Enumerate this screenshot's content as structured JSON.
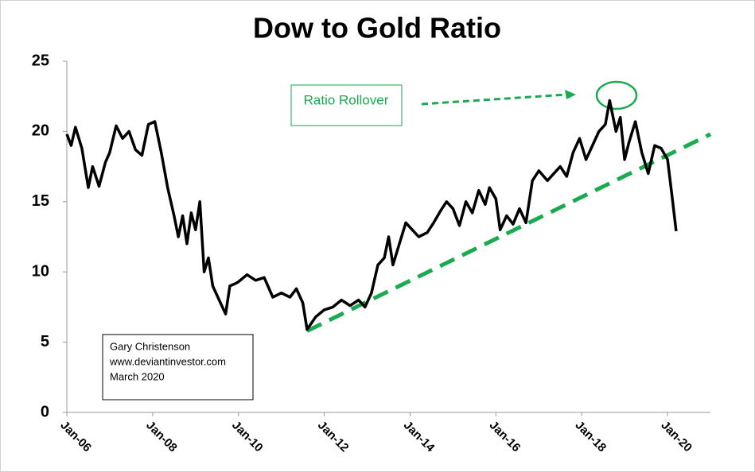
{
  "chart_data": {
    "type": "line",
    "title": "Dow to Gold Ratio",
    "x": [
      2006.0,
      2006.1,
      2006.2,
      2006.35,
      2006.5,
      2006.6,
      2006.75,
      2006.9,
      2007.0,
      2007.15,
      2007.3,
      2007.45,
      2007.6,
      2007.75,
      2007.9,
      2008.05,
      2008.2,
      2008.35,
      2008.5,
      2008.6,
      2008.7,
      2008.8,
      2008.9,
      2009.0,
      2009.1,
      2009.2,
      2009.3,
      2009.4,
      2009.55,
      2009.7,
      2009.8,
      2009.95,
      2010.0,
      2010.2,
      2010.4,
      2010.6,
      2010.8,
      2011.0,
      2011.2,
      2011.35,
      2011.5,
      2011.6,
      2011.8,
      2012.0,
      2012.2,
      2012.4,
      2012.6,
      2012.8,
      2012.95,
      2013.1,
      2013.25,
      2013.4,
      2013.5,
      2013.6,
      2013.75,
      2013.9,
      2014.05,
      2014.2,
      2014.4,
      2014.55,
      2014.7,
      2014.85,
      2015.0,
      2015.15,
      2015.3,
      2015.45,
      2015.6,
      2015.75,
      2015.85,
      2016.0,
      2016.1,
      2016.25,
      2016.4,
      2016.55,
      2016.7,
      2016.85,
      2017.0,
      2017.2,
      2017.35,
      2017.5,
      2017.65,
      2017.8,
      2017.95,
      2018.1,
      2018.25,
      2018.4,
      2018.55,
      2018.65,
      2018.8,
      2018.9,
      2019.0,
      2019.1,
      2019.25,
      2019.4,
      2019.55,
      2019.7,
      2019.85,
      2020.0,
      2020.1,
      2020.2
    ],
    "series": [
      {
        "name": "Dow to Gold Ratio",
        "color": "#000000",
        "values": [
          19.8,
          19.0,
          20.3,
          18.8,
          16.0,
          17.5,
          16.1,
          17.8,
          18.5,
          20.4,
          19.5,
          20.0,
          18.7,
          18.3,
          20.5,
          20.7,
          18.5,
          16.0,
          14.0,
          12.5,
          14.0,
          12.0,
          14.2,
          13.0,
          15.0,
          10.0,
          11.0,
          9.0,
          8.0,
          7.0,
          9.0,
          9.2,
          9.3,
          9.8,
          9.4,
          9.6,
          8.2,
          8.5,
          8.2,
          8.8,
          7.8,
          5.9,
          6.8,
          7.3,
          7.5,
          8.0,
          7.6,
          8.0,
          7.5,
          8.5,
          10.5,
          11.0,
          12.5,
          10.5,
          12.0,
          13.5,
          13.0,
          12.5,
          12.8,
          13.5,
          14.3,
          15.0,
          14.5,
          13.3,
          15.0,
          14.2,
          15.8,
          14.8,
          16.0,
          15.2,
          13.0,
          14.0,
          13.4,
          14.5,
          13.5,
          16.5,
          17.2,
          16.5,
          17.0,
          17.5,
          16.8,
          18.5,
          19.5,
          18.0,
          19.0,
          20.0,
          20.5,
          22.2,
          20.0,
          21.0,
          18.0,
          19.2,
          20.7,
          18.5,
          17.0,
          19.0,
          18.8,
          18.0,
          15.5,
          12.9
        ]
      }
    ],
    "trendline": {
      "color": "#1aaa50",
      "x": [
        2011.6,
        2021.0
      ],
      "values": [
        5.8,
        19.8
      ]
    },
    "xlim": [
      2006,
      2021
    ],
    "xticks": [
      {
        "value": 2006,
        "label": "Jan-06"
      },
      {
        "value": 2008,
        "label": "Jan-08"
      },
      {
        "value": 2010,
        "label": "Jan-10"
      },
      {
        "value": 2012,
        "label": "Jan-12"
      },
      {
        "value": 2014,
        "label": "Jan-14"
      },
      {
        "value": 2016,
        "label": "Jan-16"
      },
      {
        "value": 2018,
        "label": "Jan-18"
      },
      {
        "value": 2020,
        "label": "Jan-20"
      }
    ],
    "ylim": [
      0,
      25
    ],
    "yticks": [
      0,
      5,
      10,
      15,
      20,
      25
    ],
    "grid": false,
    "annotation": "Ratio Rollover",
    "credits": [
      "Gary Christenson",
      "www.deviantinvestor.com",
      "March 2020"
    ]
  }
}
